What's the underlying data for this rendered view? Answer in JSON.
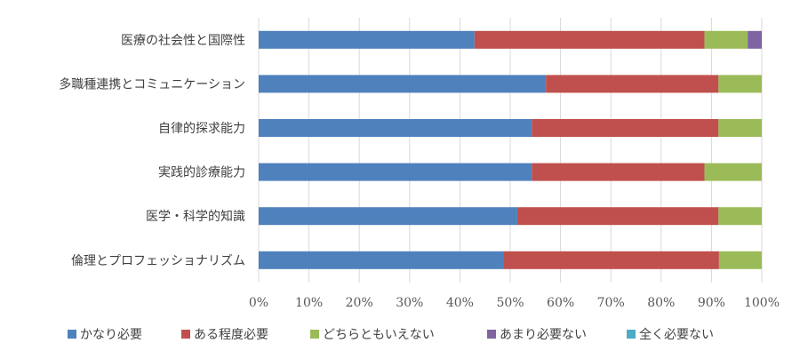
{
  "chart_data": {
    "type": "bar",
    "orientation": "horizontal",
    "stacked": true,
    "percent": true,
    "categories": [
      "医療の社会性と国際性",
      "多職種連携とコミュニケーション",
      "自律的探求能力",
      "実践的診療能力",
      "医学・科学的知識",
      "倫理とプロフェッショナリズム"
    ],
    "series": [
      {
        "name": "かなり必要",
        "color": "#4F81BD",
        "values": [
          42.9,
          57.1,
          54.3,
          54.3,
          51.4,
          48.6
        ]
      },
      {
        "name": "ある程度必要",
        "color": "#C0504D",
        "values": [
          45.7,
          34.3,
          37.1,
          34.3,
          40.0,
          42.9
        ]
      },
      {
        "name": "どちらともいえない",
        "color": "#9BBB59",
        "values": [
          8.6,
          8.6,
          8.6,
          11.4,
          8.6,
          8.5
        ]
      },
      {
        "name": "あまり必要ない",
        "color": "#8064A2",
        "values": [
          2.8,
          0,
          0,
          0,
          0,
          0
        ]
      },
      {
        "name": "全く必要ない",
        "color": "#4BACC6",
        "values": [
          0,
          0,
          0,
          0,
          0,
          0
        ]
      }
    ],
    "x_ticks": [
      "0%",
      "10%",
      "20%",
      "30%",
      "40%",
      "50%",
      "60%",
      "70%",
      "80%",
      "90%",
      "100%"
    ],
    "xlim": [
      0,
      100
    ],
    "grid": true,
    "legend": "bottom"
  }
}
